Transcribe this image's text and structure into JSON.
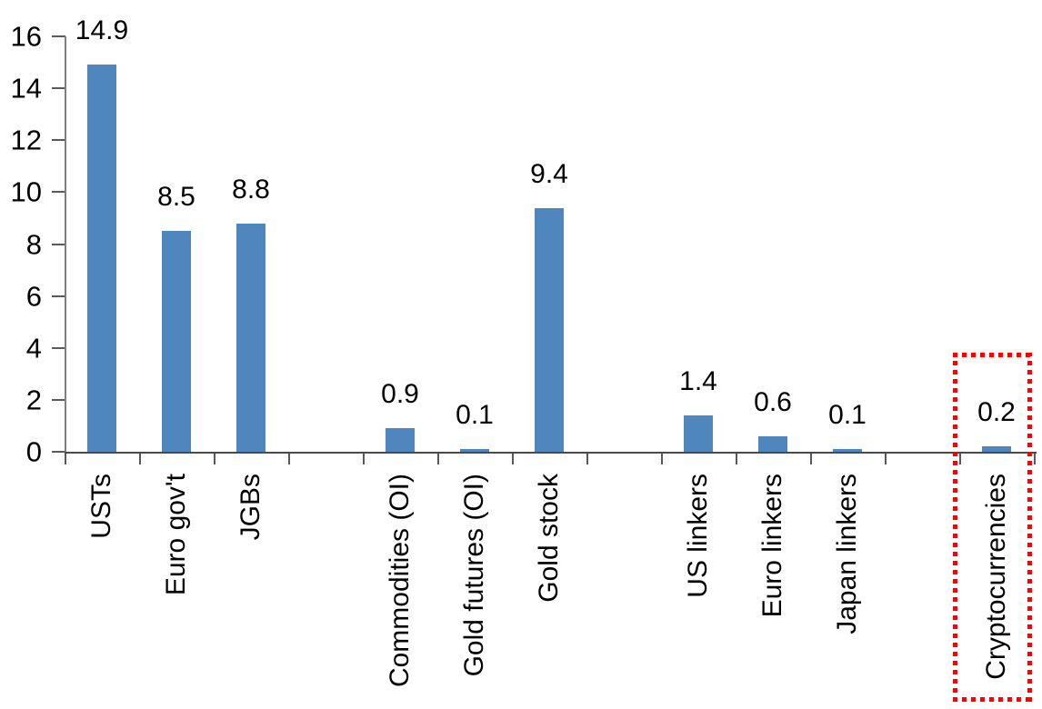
{
  "chart_data": {
    "type": "bar",
    "title": "",
    "xlabel": "",
    "ylabel": "",
    "categories": [
      "USTs",
      "Euro gov't",
      "JGBs",
      "",
      "Commodities (OI)",
      "Gold futures (OI)",
      "Gold stock",
      "",
      "US linkers",
      "Euro linkers",
      "Japan linkers",
      "",
      "Cryptocurrencies"
    ],
    "values": [
      14.9,
      8.5,
      8.8,
      null,
      0.9,
      0.1,
      9.4,
      null,
      1.4,
      0.6,
      0.1,
      null,
      0.2
    ],
    "value_labels": [
      "14.9",
      "8.5",
      "8.8",
      "",
      "0.9",
      "0.1",
      "9.4",
      "",
      "1.4",
      "0.6",
      "0.1",
      "",
      "0.2"
    ],
    "y_ticks": [
      "0",
      "2",
      "4",
      "6",
      "8",
      "10",
      "12",
      "14",
      "16"
    ],
    "ylim": [
      0,
      16
    ],
    "grid": false,
    "legend": false,
    "bar_color": "#4E86BD",
    "axis_color": "#595959",
    "label_color": "#000000",
    "highlight": {
      "category": "Cryptocurrencies",
      "style": "red-dotted-box",
      "color": "#FF0000"
    }
  }
}
